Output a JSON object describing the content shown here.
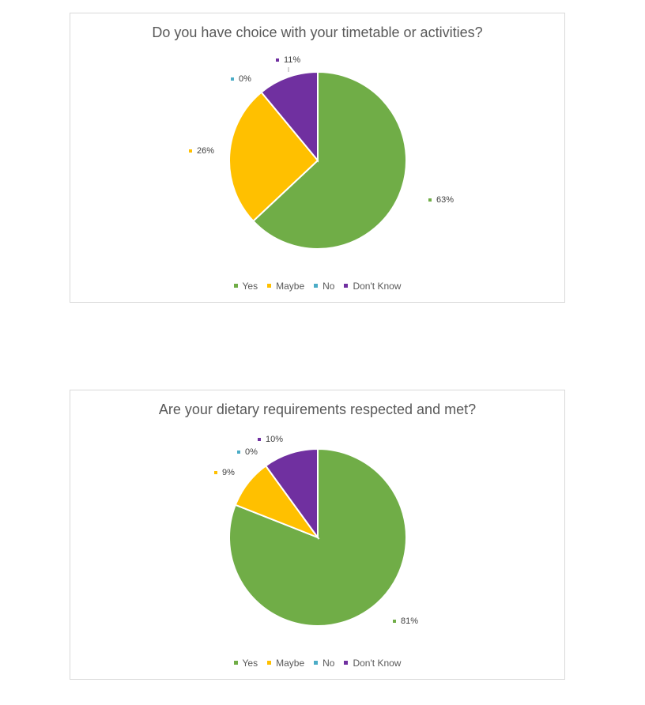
{
  "chart_data": [
    {
      "type": "pie",
      "title": "Do you have choice with your timetable or activities?",
      "categories": [
        "Yes",
        "Maybe",
        "No",
        "Don't Know"
      ],
      "values": [
        63,
        26,
        0,
        11
      ],
      "labels": [
        "63%",
        "26%",
        "0%",
        "11%"
      ],
      "colors": [
        "#70ad47",
        "#ffc000",
        "#4bacc6",
        "#7030a0"
      ],
      "legend_position": "bottom"
    },
    {
      "type": "pie",
      "title": "Are your dietary requirements respected and met?",
      "categories": [
        "Yes",
        "Maybe",
        "No",
        "Don't Know"
      ],
      "values": [
        81,
        9,
        0,
        10
      ],
      "labels": [
        "81%",
        "9%",
        "0%",
        "10%"
      ],
      "colors": [
        "#70ad47",
        "#ffc000",
        "#4bacc6",
        "#7030a0"
      ],
      "legend_position": "bottom"
    }
  ]
}
